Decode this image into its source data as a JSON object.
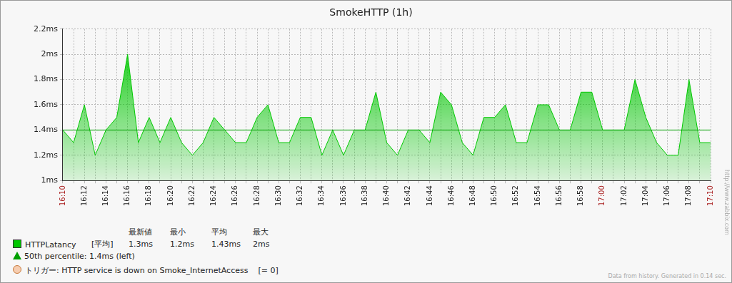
{
  "chart_data": {
    "type": "area",
    "title": "SmokeHTTP (1h)",
    "categories": [
      "16:10",
      null,
      "16:12",
      null,
      "16:14",
      null,
      "16:16",
      null,
      "16:18",
      null,
      "16:20",
      null,
      "16:22",
      null,
      "16:24",
      null,
      "16:26",
      null,
      "16:28",
      null,
      "16:30",
      null,
      "16:32",
      null,
      "16:34",
      null,
      "16:36",
      null,
      "16:38",
      null,
      "16:40",
      null,
      "16:42",
      null,
      "16:44",
      null,
      "16:46",
      null,
      "16:48",
      null,
      "16:50",
      null,
      "16:52",
      null,
      "16:54",
      null,
      "16:56",
      null,
      "16:58",
      null,
      "17:00",
      null,
      "17:02",
      null,
      "17:04",
      null,
      "17:06",
      null,
      "17:08",
      null,
      "17:10"
    ],
    "series": [
      {
        "name": "HTTPLatancy",
        "color": "#00c800",
        "values": [
          1.4,
          1.3,
          1.6,
          1.2,
          1.4,
          1.5,
          2.0,
          1.3,
          1.5,
          1.3,
          1.5,
          1.3,
          1.2,
          1.3,
          1.5,
          1.4,
          1.3,
          1.3,
          1.5,
          1.6,
          1.3,
          1.3,
          1.5,
          1.5,
          1.2,
          1.4,
          1.2,
          1.4,
          1.4,
          1.7,
          1.3,
          1.2,
          1.4,
          1.4,
          1.3,
          1.7,
          1.6,
          1.3,
          1.2,
          1.5,
          1.5,
          1.6,
          1.3,
          1.3,
          1.6,
          1.6,
          1.4,
          1.4,
          1.7,
          1.7,
          1.4,
          1.4,
          1.4,
          1.8,
          1.5,
          1.3,
          1.2,
          1.2,
          1.8,
          1.3,
          1.3
        ]
      }
    ],
    "ylim": [
      1,
      2.2
    ],
    "yticks": [
      {
        "value": 1,
        "label": "1ms"
      },
      {
        "value": 1.2,
        "label": "1.2ms"
      },
      {
        "value": 1.4,
        "label": "1.4ms"
      },
      {
        "value": 1.6,
        "label": "1.6ms"
      },
      {
        "value": 1.8,
        "label": "1.8ms"
      },
      {
        "value": 2,
        "label": "2ms"
      },
      {
        "value": 2.2,
        "label": "2.2ms"
      }
    ],
    "grid": true,
    "legend_stats": {
      "headers": [
        "最新値",
        "最小",
        "平均",
        "最大"
      ],
      "function": "[平均]",
      "values": [
        "1.3ms",
        "1.2ms",
        "1.43ms",
        "2ms"
      ]
    },
    "percentile": {
      "name": "50th percentile: 1.4ms (left)",
      "value": 1.4,
      "color": "#00a000"
    },
    "trigger": {
      "name": "トリガー: HTTP service is down on Smoke_InternetAccess",
      "condition": "[= 0]",
      "color": "#f6cdb0"
    },
    "footer": "Data from history. Generated in 0.14 sec.",
    "watermark": "http://www.zabbix.com"
  }
}
